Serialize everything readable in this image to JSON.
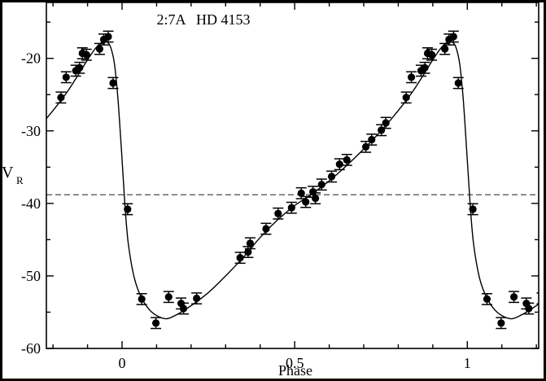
{
  "figure": {
    "background": "#ffffff",
    "foreground": "#000000",
    "border_color": "#000000"
  },
  "chart_data": {
    "type": "scatter",
    "title": "2:7A   HD 4153",
    "xlabel": "Phase",
    "ylabel": "V_R",
    "ylabel_main": "V",
    "ylabel_sub": "R",
    "xlim": [
      -0.2192,
      1.2067
    ],
    "ylim": [
      -60,
      -12.29
    ],
    "x_major_ticks": [
      0,
      0.5,
      1
    ],
    "x_major_tick_labels": [
      "0",
      "0.5",
      "1"
    ],
    "x_minor_ticks": [
      -0.2,
      -0.1,
      0.1,
      0.2,
      0.3,
      0.4,
      0.6,
      0.7,
      0.8,
      0.9,
      1.1,
      1.2
    ],
    "y_major_ticks": [
      -20,
      -30,
      -40,
      -50,
      -60
    ],
    "y_major_tick_labels": [
      "-20",
      "-30",
      "-40",
      "-50",
      "-60"
    ],
    "y_minor_ticks": [
      -15,
      -25,
      -35,
      -45,
      -55
    ],
    "grid": false,
    "legend_position": "none",
    "dashed_line": {
      "value": -38.8,
      "color": "#666666",
      "style": "dashed"
    },
    "phase_repeat_offsets": [
      -1,
      0,
      1
    ],
    "series": [
      {
        "name": "radial-velocity-measurements",
        "marker": "filled-circle",
        "color": "#000000",
        "error_bar_half": 0.75,
        "points": [
          [
            0.016,
            -40.8
          ],
          [
            0.057,
            -53.2
          ],
          [
            0.098,
            -56.5
          ],
          [
            0.135,
            -52.9
          ],
          [
            0.171,
            -53.8
          ],
          [
            0.178,
            -54.5
          ],
          [
            0.216,
            -53.1
          ],
          [
            0.342,
            -47.5
          ],
          [
            0.365,
            -46.7
          ],
          [
            0.371,
            -45.5
          ],
          [
            0.417,
            -43.5
          ],
          [
            0.452,
            -41.4
          ],
          [
            0.491,
            -40.6
          ],
          [
            0.519,
            -38.6
          ],
          [
            0.532,
            -39.8
          ],
          [
            0.553,
            -38.4
          ],
          [
            0.56,
            -39.3
          ],
          [
            0.578,
            -37.4
          ],
          [
            0.607,
            -36.3
          ],
          [
            0.63,
            -34.6
          ],
          [
            0.651,
            -34.0
          ],
          [
            0.706,
            -32.2
          ],
          [
            0.723,
            -31.2
          ],
          [
            0.751,
            -29.9
          ],
          [
            0.764,
            -28.9
          ],
          [
            0.823,
            -25.4
          ],
          [
            0.838,
            -22.6
          ],
          [
            0.866,
            -21.7
          ],
          [
            0.877,
            -21.3
          ],
          [
            0.885,
            -19.3
          ],
          [
            0.897,
            -19.5
          ],
          [
            0.935,
            -18.7
          ],
          [
            0.947,
            -17.4
          ],
          [
            0.96,
            -17.0
          ],
          [
            0.974,
            -23.4
          ]
        ]
      },
      {
        "name": "fitted-velocity-curve",
        "type": "line",
        "color": "#000000",
        "period": 1.0,
        "points": [
          [
            0.13,
            -55.9
          ],
          [
            0.16,
            -55.3
          ],
          [
            0.2,
            -54.1
          ],
          [
            0.25,
            -52.3
          ],
          [
            0.3,
            -50.0
          ],
          [
            0.35,
            -47.5
          ],
          [
            0.4,
            -44.7
          ],
          [
            0.45,
            -42.3
          ],
          [
            0.5,
            -40.3
          ],
          [
            0.55,
            -38.7
          ],
          [
            0.6,
            -36.9
          ],
          [
            0.65,
            -34.8
          ],
          [
            0.7,
            -32.5
          ],
          [
            0.75,
            -30.0
          ],
          [
            0.8,
            -27.2
          ],
          [
            0.84,
            -24.7
          ],
          [
            0.87,
            -22.5
          ],
          [
            0.9,
            -20.2
          ],
          [
            0.925,
            -18.5
          ],
          [
            0.945,
            -17.7
          ],
          [
            0.958,
            -17.8
          ],
          [
            0.968,
            -18.6
          ],
          [
            0.978,
            -20.8
          ],
          [
            0.988,
            -25.5
          ],
          [
            0.998,
            -32.5
          ],
          [
            1.008,
            -40.0
          ],
          [
            1.018,
            -45.5
          ],
          [
            1.035,
            -50.2
          ],
          [
            1.055,
            -52.9
          ],
          [
            1.08,
            -54.7
          ],
          [
            1.105,
            -55.6
          ],
          [
            1.13,
            -55.9
          ]
        ]
      }
    ]
  }
}
